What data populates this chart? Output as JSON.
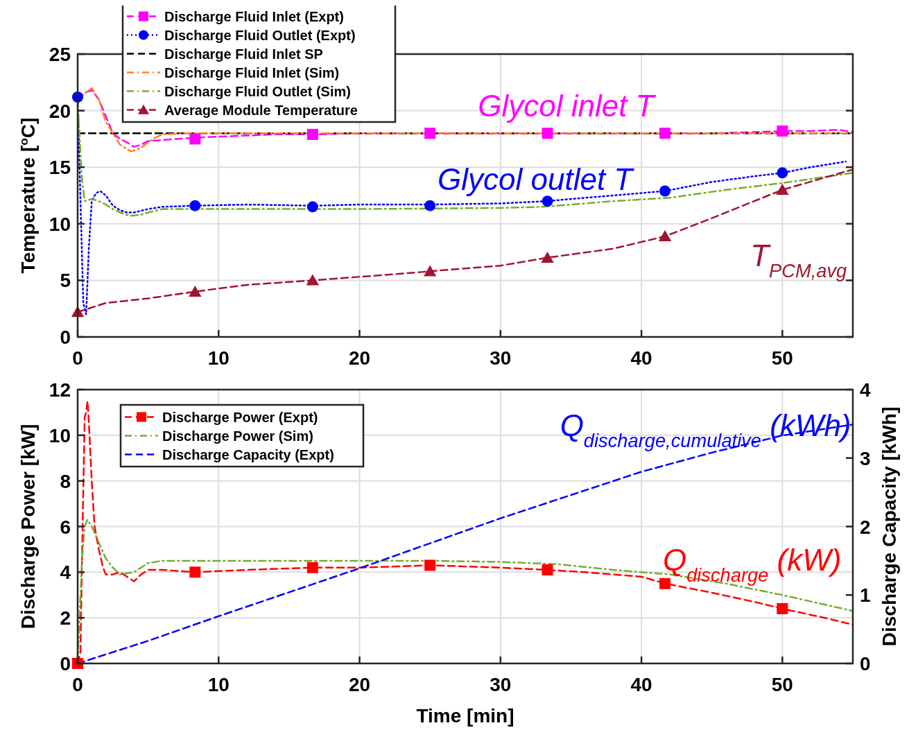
{
  "chart_data": [
    {
      "type": "line",
      "ylabel": "Temperature [$^{o}$C]",
      "xlim": [
        0,
        55
      ],
      "xticks": [
        0,
        10,
        20,
        30,
        40,
        50
      ],
      "ylim": [
        0,
        25
      ],
      "yticks": [
        0,
        5,
        10,
        15,
        20,
        25
      ],
      "grid": true,
      "legend": "top left",
      "series": [
        {
          "name": "Discharge Fluid Inlet (Expt)",
          "color": "#ff00ff",
          "line_style": "dashed",
          "x": [
            0,
            0.5,
            1,
            1.5,
            2,
            2.5,
            3,
            3.5,
            4,
            4.5,
            5,
            6,
            7,
            8.3,
            10,
            12,
            14,
            16.7,
            20,
            25,
            30,
            33.3,
            36,
            40,
            41.7,
            45,
            48,
            50,
            52,
            54,
            55
          ],
          "values": [
            21,
            21.6,
            21.8,
            21,
            19.5,
            18,
            17.5,
            17.2,
            16.8,
            17,
            17.3,
            17.4,
            17.5,
            17.6,
            17.7,
            17.8,
            17.9,
            17.9,
            18,
            18,
            18,
            18,
            18,
            18,
            18,
            18,
            18.1,
            18.2,
            18.2,
            18.3,
            18.1
          ]
        },
        {
          "name": "Discharge Fluid Outlet (Expt)",
          "color": "#0000ff",
          "line_style": "dotted",
          "x": [
            0,
            0.2,
            0.4,
            0.6,
            0.8,
            1,
            1.3,
            1.6,
            2,
            2.5,
            3,
            3.5,
            4,
            5,
            6,
            8.3,
            12,
            16.7,
            20,
            25,
            30,
            33.3,
            36,
            38,
            41.7,
            45,
            48,
            50,
            52,
            54.5
          ],
          "values": [
            21.2,
            12,
            3,
            2,
            8,
            12,
            12.7,
            12.9,
            12.5,
            11.6,
            11.2,
            11,
            11,
            11.3,
            11.5,
            11.6,
            11.7,
            11.6,
            11.7,
            11.7,
            11.8,
            12,
            12.3,
            12.5,
            12.9,
            13.7,
            14.2,
            14.5,
            15,
            15.5
          ]
        },
        {
          "name": "Discharge Fluid Inlet SP",
          "color": "#000000",
          "line_style": "dashed",
          "x": [
            0,
            55
          ],
          "values": [
            18,
            18
          ]
        },
        {
          "name": "Discharge Fluid Inlet (Sim)",
          "color": "#ff7f27",
          "line_style": "dashdot",
          "x": [
            0,
            0.5,
            1,
            1.5,
            2,
            2.5,
            3,
            3.5,
            3.8,
            4.5,
            5,
            5.5,
            6,
            8,
            20,
            40,
            55
          ],
          "values": [
            21,
            21.5,
            22,
            21,
            19,
            18,
            17,
            16.6,
            16.4,
            16.7,
            17.2,
            17.6,
            17.9,
            18,
            18,
            18,
            18
          ]
        },
        {
          "name": "Discharge Fluid Outlet (Sim)",
          "color": "#77ac30",
          "line_style": "dashdot",
          "x": [
            0,
            0.3,
            0.5,
            1,
            1.5,
            2,
            2.5,
            3,
            3.7,
            4.5,
            5,
            6,
            8,
            20,
            30,
            33,
            36,
            38,
            42,
            46,
            50,
            55
          ],
          "values": [
            21,
            14,
            12,
            12.2,
            12,
            11.7,
            11.3,
            11,
            10.7,
            10.8,
            11,
            11.3,
            11.3,
            11.3,
            11.4,
            11.5,
            11.8,
            12,
            12.3,
            13,
            13.6,
            14.5
          ]
        },
        {
          "name": "Average Module Temperature",
          "color": "#a2142f",
          "line_style": "dashed",
          "x": [
            0,
            2,
            5,
            8.3,
            12,
            16.7,
            22,
            25,
            30,
            33.3,
            38,
            41.7,
            45,
            50,
            55
          ],
          "values": [
            2.2,
            3,
            3.4,
            4,
            4.6,
            5,
            5.5,
            5.8,
            6.3,
            7,
            7.8,
            8.9,
            10.5,
            13,
            14.8
          ]
        },
        {
          "type": "scatter",
          "color": "#ff00ff",
          "marker": "square",
          "x": [
            8.33,
            16.67,
            25,
            33.33,
            41.67,
            50
          ],
          "values": [
            17.5,
            17.9,
            18,
            18,
            18,
            18.2
          ]
        },
        {
          "type": "scatter",
          "color": "#0000ff",
          "marker": "circle",
          "x": [
            0,
            8.33,
            16.67,
            25,
            33.33,
            41.67,
            50
          ],
          "values": [
            21.2,
            11.6,
            11.5,
            11.6,
            12,
            12.9,
            14.5
          ]
        },
        {
          "type": "scatter",
          "color": "#a2142f",
          "marker": "triangle",
          "x": [
            0,
            8.33,
            16.67,
            25,
            33.33,
            41.67,
            50
          ],
          "values": [
            2.2,
            4,
            5,
            5.8,
            7,
            8.9,
            13
          ]
        }
      ],
      "annotations": [
        "Glycol inlet T",
        "Glycol outlet T",
        "T$_{PCM,avg}$"
      ]
    },
    {
      "type": "line",
      "xlabel": "Time [min]",
      "ylabel": "Discharge Power [kW]",
      "y2label": "Discharge Capacity [kWh]",
      "xlim": [
        0,
        55
      ],
      "xticks": [
        0,
        10,
        20,
        30,
        40,
        50
      ],
      "ylim": [
        0,
        12
      ],
      "yticks": [
        0,
        2,
        4,
        6,
        8,
        10,
        12
      ],
      "y2lim": [
        0,
        4
      ],
      "y2ticks": [
        0,
        1,
        2,
        3,
        4
      ],
      "grid": true,
      "legend": "top left",
      "series": [
        {
          "name": "Discharge Power (Expt)",
          "color": "#ff0000",
          "line_style": "dashed",
          "x": [
            0,
            0.2,
            0.35,
            0.5,
            0.6,
            0.7,
            0.8,
            1,
            1.2,
            1.5,
            1.8,
            2,
            2.5,
            3,
            3.5,
            4,
            4.5,
            5,
            6,
            8.3,
            12,
            16.7,
            20,
            25,
            30,
            33.3,
            36,
            40,
            41.7,
            45,
            48,
            50,
            53,
            55
          ],
          "values": [
            0,
            0.5,
            6,
            10.8,
            11,
            11.5,
            10.5,
            8,
            6,
            5,
            4.2,
            3.9,
            3.9,
            4,
            3.8,
            3.6,
            3.9,
            4.1,
            4.1,
            4,
            4.1,
            4.2,
            4.2,
            4.3,
            4.2,
            4.1,
            4,
            3.8,
            3.5,
            3.1,
            2.7,
            2.4,
            2,
            1.7
          ]
        },
        {
          "name": "Discharge Power (Sim)",
          "color": "#77ac30",
          "line_style": "dashdot",
          "x": [
            0,
            0.3,
            0.5,
            0.7,
            1,
            1.5,
            2,
            2.5,
            3,
            4,
            5,
            6,
            15,
            25,
            30,
            34,
            38,
            42,
            46,
            50,
            55
          ],
          "values": [
            0,
            4.5,
            6,
            6.3,
            6,
            5.3,
            4.6,
            4.2,
            3.9,
            4,
            4.4,
            4.5,
            4.5,
            4.5,
            4.45,
            4.35,
            4.1,
            3.9,
            3.5,
            3,
            2.3
          ]
        },
        {
          "name": "Discharge Capacity (Expt)",
          "color": "#0000ff",
          "line_style": "dashed",
          "axis": "y2",
          "x": [
            0,
            5,
            10,
            20,
            30,
            40,
            45,
            50,
            55
          ],
          "values": [
            0,
            0.33,
            0.69,
            1.39,
            2.12,
            2.8,
            3.08,
            3.33,
            3.49
          ]
        },
        {
          "type": "scatter",
          "color": "#ff0000",
          "marker": "square",
          "x": [
            0,
            8.33,
            16.67,
            25,
            33.33,
            41.67,
            50
          ],
          "values": [
            0,
            4,
            4.2,
            4.3,
            4.1,
            3.5,
            2.4
          ]
        }
      ],
      "annotations": [
        "Q$_{discharge,cumulative}$ (kWh)",
        "Q$_{discharge}$ (kW)"
      ]
    }
  ]
}
